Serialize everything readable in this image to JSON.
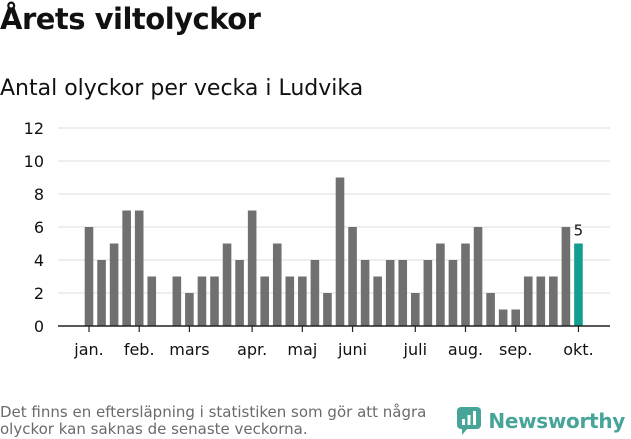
{
  "title": "Årets viltolyckor",
  "subtitle": "Antal olyckor per vecka i Ludvika",
  "footnote": "Det finns en eftersläpning i statistiken som gör att några olyckor kan saknas de senaste veckorna.",
  "brand": {
    "name": "Newsworthy",
    "color": "#46a598",
    "icon": "newsworthy-logo-icon"
  },
  "chart_data": {
    "type": "bar",
    "title": "",
    "xlabel": "",
    "ylabel": "",
    "ylim": [
      0,
      12
    ],
    "yticks": [
      0,
      2,
      4,
      6,
      8,
      10,
      12
    ],
    "grid": true,
    "legend": "none",
    "colors": {
      "bar": "#707070",
      "highlight": "#139e8f",
      "grid": "#dddddd",
      "axis": "#222222"
    },
    "weeks": [
      1,
      2,
      3,
      4,
      5,
      6,
      7,
      8,
      9,
      10,
      11,
      12,
      13,
      14,
      15,
      16,
      17,
      18,
      19,
      20,
      21,
      22,
      23,
      24,
      25,
      26,
      27,
      28,
      29,
      30,
      31,
      32,
      33,
      34,
      35,
      36,
      37,
      38,
      39,
      40
    ],
    "values": [
      6,
      4,
      5,
      7,
      7,
      3,
      null,
      3,
      2,
      3,
      3,
      5,
      4,
      7,
      3,
      5,
      3,
      3,
      4,
      2,
      9,
      6,
      4,
      3,
      4,
      4,
      2,
      4,
      5,
      4,
      5,
      6,
      2,
      1,
      1,
      3,
      3,
      3,
      6,
      5
    ],
    "highlight_index": 39,
    "data_labels": [
      {
        "index": 39,
        "text": "5"
      }
    ],
    "month_labels": [
      {
        "label": "jan.",
        "week": 1
      },
      {
        "label": "feb.",
        "week": 5
      },
      {
        "label": "mars",
        "week": 9
      },
      {
        "label": "apr.",
        "week": 14
      },
      {
        "label": "maj",
        "week": 18
      },
      {
        "label": "juni",
        "week": 22
      },
      {
        "label": "juli",
        "week": 27
      },
      {
        "label": "aug.",
        "week": 31
      },
      {
        "label": "sep.",
        "week": 35
      },
      {
        "label": "okt.",
        "week": 40
      }
    ]
  }
}
